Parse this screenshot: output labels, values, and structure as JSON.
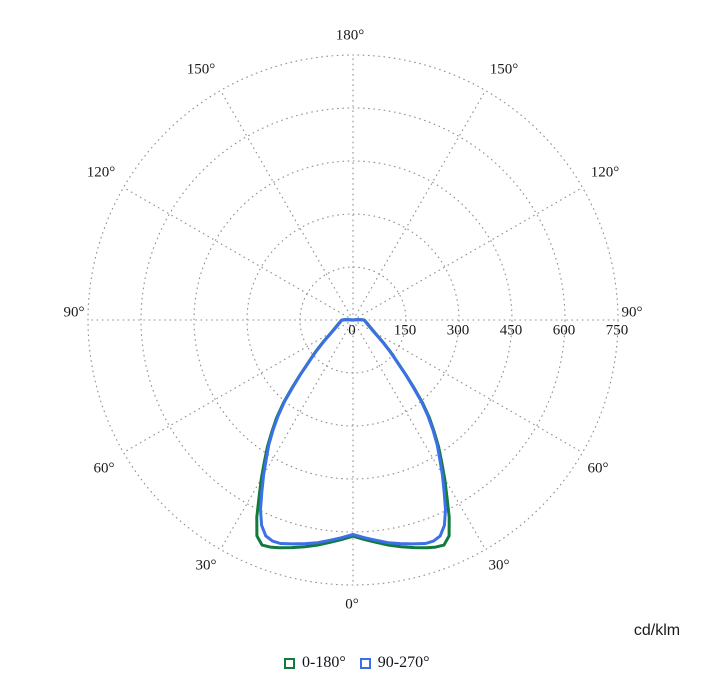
{
  "chart_data": {
    "type": "line",
    "subtype": "polar-photometric",
    "title": "",
    "units_label": "cd/klm",
    "grid": true,
    "grid_color": "#8f8f8f",
    "background_color": "#ffffff",
    "angle_ticks_deg": [
      0,
      30,
      60,
      90,
      120,
      150,
      180
    ],
    "angle_labels": [
      "180°",
      "150°",
      "150°",
      "120°",
      "120°",
      "90°",
      "90°",
      "60°",
      "60°",
      "30°",
      "30°",
      "0°"
    ],
    "r_ticks": [
      0,
      150,
      300,
      450,
      600,
      750
    ],
    "r_tick_labels": [
      "0",
      "150",
      "300",
      "450",
      "600",
      "750"
    ],
    "r_max": 750,
    "symmetric_about_vertical": true,
    "series": [
      {
        "name": "0-180°",
        "color": "#117a3d",
        "points_angle_intensity": [
          [
            0,
            612
          ],
          [
            3,
            622
          ],
          [
            6,
            633
          ],
          [
            9,
            645
          ],
          [
            12,
            656
          ],
          [
            15,
            667
          ],
          [
            18,
            678
          ],
          [
            20,
            684
          ],
          [
            22,
            687
          ],
          [
            24,
            669
          ],
          [
            26,
            621
          ],
          [
            28,
            566
          ],
          [
            30,
            519
          ],
          [
            32,
            473
          ],
          [
            34,
            433
          ],
          [
            36,
            391
          ],
          [
            38,
            351
          ],
          [
            40,
            306
          ],
          [
            42,
            257
          ],
          [
            44,
            216
          ],
          [
            46,
            181
          ],
          [
            48,
            156
          ],
          [
            50,
            136
          ],
          [
            53,
            110
          ],
          [
            56,
            89
          ],
          [
            60,
            71
          ],
          [
            65,
            58
          ],
          [
            70,
            49
          ],
          [
            75,
            43
          ],
          [
            80,
            38
          ],
          [
            85,
            35
          ],
          [
            90,
            32
          ],
          [
            93,
            21
          ],
          [
            96,
            9
          ],
          [
            99,
            0
          ]
        ]
      },
      {
        "name": "90-270°",
        "color": "#3b70e6",
        "points_angle_intensity": [
          [
            0,
            607
          ],
          [
            3,
            617
          ],
          [
            6,
            627
          ],
          [
            9,
            638
          ],
          [
            12,
            647
          ],
          [
            15,
            656
          ],
          [
            18,
            665
          ],
          [
            20,
            666
          ],
          [
            22,
            659
          ],
          [
            24,
            636
          ],
          [
            26,
            597
          ],
          [
            28,
            549
          ],
          [
            30,
            506
          ],
          [
            32,
            463
          ],
          [
            34,
            426
          ],
          [
            36,
            385
          ],
          [
            38,
            345
          ],
          [
            40,
            301
          ],
          [
            42,
            252
          ],
          [
            44,
            213
          ],
          [
            46,
            177
          ],
          [
            48,
            153
          ],
          [
            50,
            133
          ],
          [
            53,
            107
          ],
          [
            56,
            87
          ],
          [
            60,
            69
          ],
          [
            65,
            56
          ],
          [
            70,
            47
          ],
          [
            75,
            41
          ],
          [
            80,
            37
          ],
          [
            85,
            34
          ],
          [
            90,
            30
          ],
          [
            93,
            19
          ],
          [
            96,
            8
          ],
          [
            99,
            0
          ]
        ]
      }
    ],
    "legend_position": "bottom"
  },
  "legend": {
    "items": [
      {
        "label": "0-180°",
        "color": "#117a3d"
      },
      {
        "label": "90-270°",
        "color": "#3b70e6"
      }
    ]
  },
  "units": {
    "label": "cd/klm"
  }
}
